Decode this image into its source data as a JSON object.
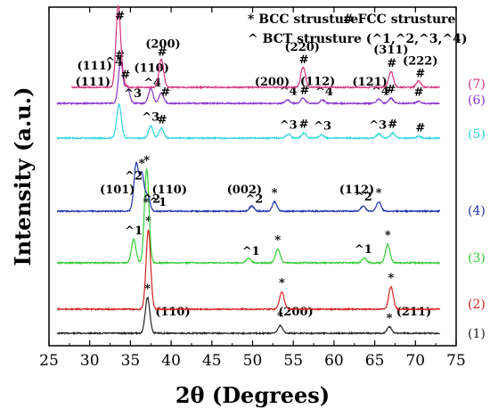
{
  "chart_data": {
    "type": "line",
    "xlabel": "2θ (Degrees)",
    "ylabel": "Intensity (a.u.)",
    "xlim": [
      25,
      75
    ],
    "x_ticks": [
      "25",
      "30",
      "35",
      "40",
      "45",
      "50",
      "55",
      "60",
      "65",
      "70",
      "75"
    ],
    "legend": [
      "* BCC strusture",
      "# FCC strusture",
      "^ BCT strusture (^1,^2,^3,^4)"
    ],
    "series": [
      {
        "name": "(1)",
        "color": "#222222",
        "peaks": [
          {
            "x": 37.1,
            "h": 1.0
          },
          {
            "x": 53.4,
            "h": 0.22
          },
          {
            "x": 66.8,
            "h": 0.18
          }
        ],
        "marker_labels": [
          {
            "x": 37.1,
            "text": "*"
          },
          {
            "x": 40.2,
            "text": "(110)"
          },
          {
            "x": 53.4,
            "text": "*"
          },
          {
            "x": 55.3,
            "text": "(200)"
          },
          {
            "x": 66.8,
            "text": "*"
          },
          {
            "x": 69.8,
            "text": "(211)"
          }
        ]
      },
      {
        "name": "(2)",
        "color": "#d42020",
        "peaks": [
          {
            "x": 37.2,
            "h": 1.0
          },
          {
            "x": 53.6,
            "h": 0.22
          },
          {
            "x": 67.0,
            "h": 0.28
          }
        ],
        "marker_labels": [
          {
            "x": 37.2,
            "text": "*"
          },
          {
            "x": 53.6,
            "text": "*"
          },
          {
            "x": 67.0,
            "text": "*"
          }
        ]
      },
      {
        "name": "(3)",
        "color": "#33cc33",
        "peaks": [
          {
            "x": 35.4,
            "h": 0.25
          },
          {
            "x": 37.0,
            "h": 1.0
          },
          {
            "x": 49.5,
            "h": 0.05
          },
          {
            "x": 53.1,
            "h": 0.15
          },
          {
            "x": 63.7,
            "h": 0.05
          },
          {
            "x": 66.6,
            "h": 0.2
          }
        ],
        "marker_labels": [
          {
            "x": 35.4,
            "text": "^1"
          },
          {
            "x": 37.0,
            "text": "*"
          },
          {
            "x": 49.8,
            "text": "^1"
          },
          {
            "x": 53.1,
            "text": "*"
          },
          {
            "x": 63.6,
            "text": "^1"
          },
          {
            "x": 66.6,
            "text": "*"
          }
        ]
      },
      {
        "name": "(4)",
        "color": "#2233aa",
        "peaks": [
          {
            "x": 35.7,
            "h": 0.9
          },
          {
            "x": 36.4,
            "h": 0.7
          },
          {
            "x": 37.1,
            "h": 0.3
          },
          {
            "x": 49.9,
            "h": 0.1
          },
          {
            "x": 52.7,
            "h": 0.18
          },
          {
            "x": 63.6,
            "h": 0.1
          },
          {
            "x": 65.5,
            "h": 0.18
          }
        ],
        "marker_labels": [
          {
            "x": 33.4,
            "text": "(101)"
          },
          {
            "x": 35.4,
            "text": "^2"
          },
          {
            "x": 36.4,
            "text": "*"
          },
          {
            "x": 37.6,
            "text": "^2"
          },
          {
            "x": 39.8,
            "text": "(110)"
          },
          {
            "x": 38.0,
            "text": "*^1"
          },
          {
            "x": 49.0,
            "text": "(002)"
          },
          {
            "x": 50.2,
            "text": "^2"
          },
          {
            "x": 52.7,
            "text": "*"
          },
          {
            "x": 62.8,
            "text": "(112)"
          },
          {
            "x": 63.6,
            "text": "^2"
          },
          {
            "x": 65.5,
            "text": "*"
          }
        ]
      },
      {
        "name": "(5)",
        "color": "#2dd6dc",
        "peaks": [
          {
            "x": 33.6,
            "h": 1.0
          },
          {
            "x": 37.5,
            "h": 0.35
          },
          {
            "x": 38.8,
            "h": 0.3
          },
          {
            "x": 54.4,
            "h": 0.12
          },
          {
            "x": 56.3,
            "h": 0.15
          },
          {
            "x": 58.5,
            "h": 0.1
          },
          {
            "x": 65.5,
            "h": 0.12
          },
          {
            "x": 67.2,
            "h": 0.15
          },
          {
            "x": 70.4,
            "h": 0.05
          }
        ],
        "marker_labels": [
          {
            "x": 37.5,
            "text": "^3"
          },
          {
            "x": 38.9,
            "text": "#"
          },
          {
            "x": 54.4,
            "text": "^3"
          },
          {
            "x": 56.3,
            "text": "#"
          },
          {
            "x": 58.6,
            "text": "^3"
          },
          {
            "x": 65.4,
            "text": "^3"
          },
          {
            "x": 67.2,
            "text": "#"
          },
          {
            "x": 70.6,
            "text": "#"
          }
        ]
      },
      {
        "name": "(6)",
        "color": "#8833cc",
        "peaks": [
          {
            "x": 33.8,
            "h": 1.0
          },
          {
            "x": 34.6,
            "h": 0.4
          },
          {
            "x": 37.5,
            "h": 0.35
          },
          {
            "x": 38.8,
            "h": 0.25
          },
          {
            "x": 54.3,
            "h": 0.08
          },
          {
            "x": 56.2,
            "h": 0.12
          },
          {
            "x": 58.6,
            "h": 0.08
          },
          {
            "x": 65.5,
            "h": 0.1
          },
          {
            "x": 67.0,
            "h": 0.12
          },
          {
            "x": 70.4,
            "h": 0.05
          }
        ],
        "marker_labels": [
          {
            "x": 30.4,
            "text": "(111)"
          },
          {
            "x": 33.7,
            "text": "#"
          },
          {
            "x": 35.3,
            "text": "^3"
          },
          {
            "x": 37.6,
            "text": "(110)"
          },
          {
            "x": 37.7,
            "text": "^4"
          },
          {
            "x": 39.3,
            "text": "#"
          },
          {
            "x": 52.4,
            "text": "(200)"
          },
          {
            "x": 54.4,
            "text": "^4"
          },
          {
            "x": 56.4,
            "text": "#"
          },
          {
            "x": 58.0,
            "text": "(112)"
          },
          {
            "x": 58.8,
            "text": "^4"
          },
          {
            "x": 64.4,
            "text": "(121)"
          },
          {
            "x": 65.7,
            "text": "^4"
          },
          {
            "x": 67.0,
            "text": "#"
          },
          {
            "x": 70.4,
            "text": "#"
          }
        ]
      },
      {
        "name": "(7)",
        "color": "#d6337a",
        "peaks": [
          {
            "x": 33.5,
            "h": 1.0
          },
          {
            "x": 34.0,
            "h": 0.1
          },
          {
            "x": 38.8,
            "h": 0.35
          },
          {
            "x": 56.2,
            "h": 0.25
          },
          {
            "x": 67.0,
            "h": 0.2
          },
          {
            "x": 70.4,
            "h": 0.08
          }
        ],
        "marker_labels": [
          {
            "x": 30.6,
            "text": "(111)"
          },
          {
            "x": 33.7,
            "text": "#"
          },
          {
            "x": 33.0,
            "text": "^4"
          },
          {
            "x": 34.4,
            "text": "#"
          },
          {
            "x": 39.0,
            "text": "(200)"
          },
          {
            "x": 38.9,
            "text": "#"
          },
          {
            "x": 56.1,
            "text": "(220)"
          },
          {
            "x": 56.3,
            "text": "#"
          },
          {
            "x": 67.0,
            "text": "(311)"
          },
          {
            "x": 67.1,
            "text": "#"
          },
          {
            "x": 70.6,
            "text": "(222)"
          },
          {
            "x": 70.6,
            "text": "#"
          }
        ]
      }
    ]
  }
}
